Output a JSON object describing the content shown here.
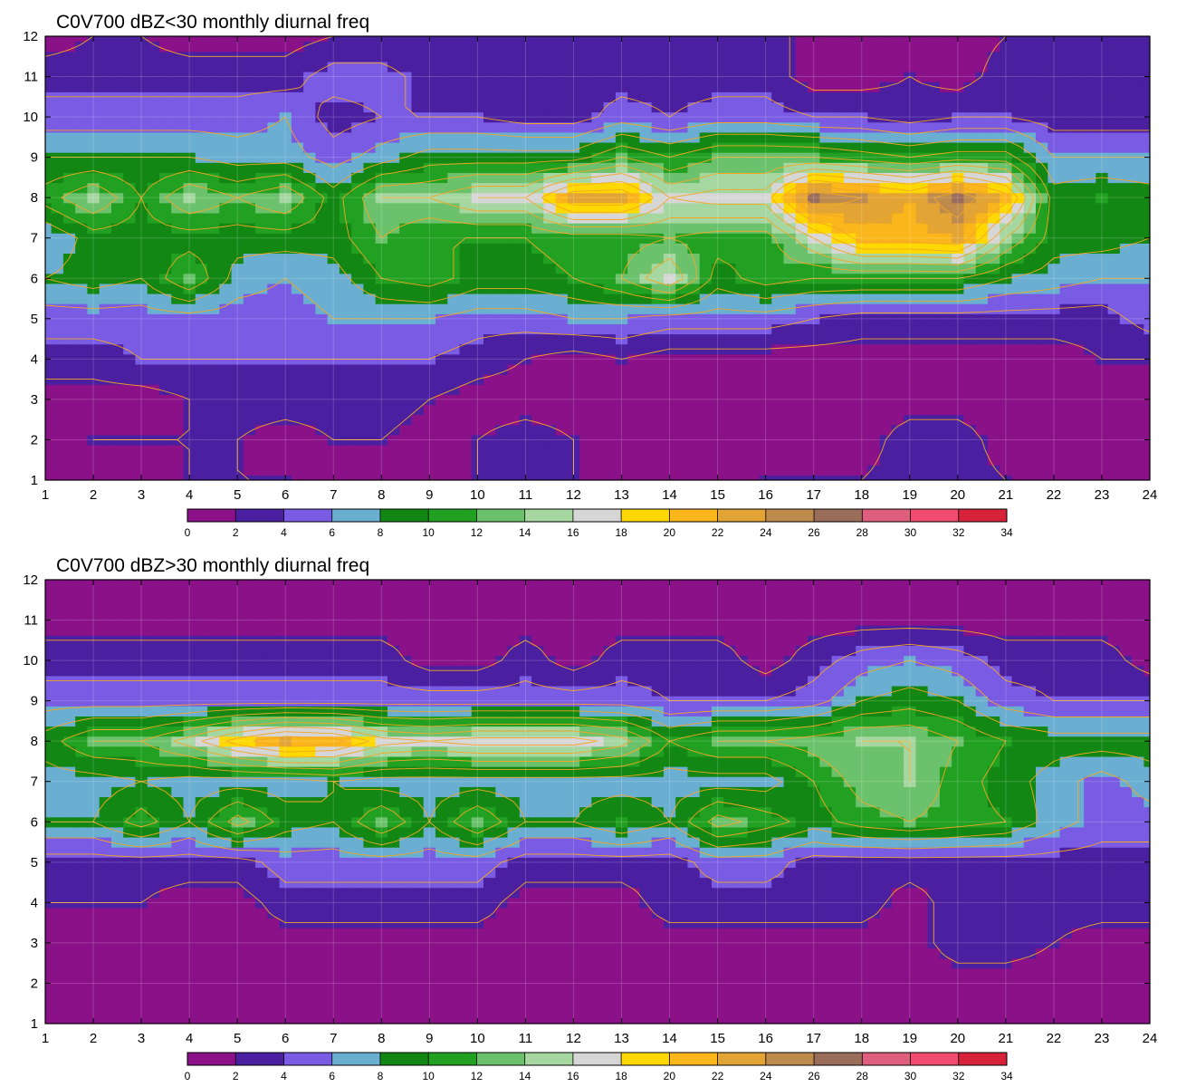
{
  "chart_data": [
    {
      "type": "heatmap",
      "title": "C0V700 dBZ<30 monthly diurnal freq",
      "xlabel": "",
      "ylabel": "",
      "x_ticks": [
        1,
        2,
        3,
        4,
        5,
        6,
        7,
        8,
        9,
        10,
        11,
        12,
        13,
        14,
        15,
        16,
        17,
        18,
        19,
        20,
        21,
        22,
        23,
        24
      ],
      "y_ticks": [
        1,
        2,
        3,
        4,
        5,
        6,
        7,
        8,
        9,
        10,
        11,
        12
      ],
      "xlim": [
        1,
        24
      ],
      "ylim": [
        1,
        12
      ],
      "colorbar_levels": [
        0,
        2,
        4,
        6,
        8,
        10,
        12,
        14,
        16,
        18,
        20,
        22,
        24,
        26,
        28,
        30,
        32,
        34
      ],
      "z": [
        [
          1,
          1,
          1,
          2,
          2,
          2,
          1,
          1,
          1,
          2,
          3,
          2,
          1,
          1,
          1,
          2,
          2,
          2,
          3,
          3,
          2,
          1,
          1,
          0
        ],
        [
          1,
          2,
          2,
          2,
          2,
          1,
          2,
          2,
          1,
          2,
          3,
          2,
          1,
          1,
          1,
          1,
          1,
          1,
          3,
          3,
          1,
          1,
          1,
          1
        ],
        [
          1,
          1,
          1,
          2,
          3,
          3,
          3,
          3,
          2,
          1,
          1,
          1,
          1,
          1,
          1,
          1,
          1,
          1,
          1,
          1,
          1,
          1,
          1,
          1
        ],
        [
          3,
          3,
          4,
          4,
          4,
          4,
          4,
          4,
          4,
          3,
          2,
          1,
          2,
          1,
          1,
          1,
          1,
          1,
          1,
          1,
          1,
          1,
          2,
          2
        ],
        [
          5,
          5,
          5,
          5,
          5,
          5,
          6,
          6,
          6,
          5,
          5,
          6,
          6,
          5,
          5,
          5,
          4,
          3,
          3,
          3,
          3,
          3,
          3,
          5
        ],
        [
          8,
          9,
          8,
          12,
          7,
          6,
          7,
          10,
          11,
          9,
          9,
          10,
          12,
          16,
          9,
          11,
          10,
          10,
          10,
          10,
          8,
          7,
          6,
          6
        ],
        [
          6,
          9,
          9,
          9,
          9,
          9,
          9,
          12,
          10,
          10,
          10,
          11,
          11,
          12,
          11,
          11,
          16,
          21,
          21,
          22,
          14,
          9,
          9,
          8
        ],
        [
          11,
          14,
          10,
          14,
          12,
          14,
          9,
          14,
          14,
          16,
          16,
          22,
          22,
          16,
          17,
          17,
          26,
          24,
          22,
          26,
          21,
          9,
          10,
          9
        ],
        [
          8,
          8,
          8,
          8,
          7,
          7,
          5,
          7,
          9,
          9,
          9,
          9,
          12,
          10,
          12,
          12,
          12,
          11,
          10,
          11,
          11,
          6,
          6,
          6
        ],
        [
          5,
          5,
          5,
          5,
          5,
          6,
          3,
          4,
          4,
          4,
          3,
          3,
          5,
          4,
          5,
          5,
          4,
          4,
          3,
          4,
          4,
          3,
          3,
          3
        ],
        [
          3,
          3,
          3,
          3,
          3,
          3,
          5,
          5,
          3,
          3,
          3,
          3,
          3,
          3,
          3,
          3,
          1,
          1,
          2,
          1,
          3,
          3,
          3,
          3
        ],
        [
          1,
          2,
          2,
          1,
          1,
          1,
          2,
          2,
          2,
          2,
          2,
          2,
          2,
          2,
          3,
          3,
          1,
          1,
          1,
          1,
          2,
          2,
          3,
          2
        ]
      ]
    },
    {
      "type": "heatmap",
      "title": "C0V700 dBZ>30 monthly diurnal freq",
      "xlabel": "",
      "ylabel": "",
      "x_ticks": [
        1,
        2,
        3,
        4,
        5,
        6,
        7,
        8,
        9,
        10,
        11,
        12,
        13,
        14,
        15,
        16,
        17,
        18,
        19,
        20,
        21,
        22,
        23,
        24
      ],
      "y_ticks": [
        1,
        2,
        3,
        4,
        5,
        6,
        7,
        8,
        9,
        10,
        11,
        12
      ],
      "xlim": [
        1,
        24
      ],
      "ylim": [
        1,
        12
      ],
      "colorbar_levels": [
        0,
        2,
        4,
        6,
        8,
        10,
        12,
        14,
        16,
        18,
        20,
        22,
        24,
        26,
        28,
        30,
        32,
        34
      ],
      "z": [
        [
          1,
          1,
          1,
          1,
          1,
          1,
          1,
          1,
          1,
          1,
          1,
          1,
          1,
          1,
          1,
          1,
          1,
          1,
          1,
          1,
          1,
          1,
          1,
          1
        ],
        [
          1,
          1,
          1,
          1,
          1,
          1,
          1,
          1,
          1,
          1,
          1,
          1,
          1,
          1,
          1,
          1,
          1,
          1,
          1,
          1,
          1,
          1,
          1,
          1
        ],
        [
          1,
          1,
          1,
          1,
          1,
          1,
          1,
          1,
          1,
          1,
          1,
          1,
          1,
          1,
          1,
          1,
          1,
          1,
          1,
          3,
          3,
          2,
          1,
          1
        ],
        [
          2,
          2,
          2,
          1,
          1,
          3,
          3,
          3,
          3,
          3,
          1,
          1,
          1,
          3,
          3,
          3,
          3,
          3,
          1,
          3,
          3,
          3,
          3,
          3
        ],
        [
          3,
          3,
          3,
          3,
          3,
          5,
          5,
          5,
          5,
          5,
          3,
          3,
          3,
          3,
          5,
          5,
          3,
          3,
          3,
          3,
          3,
          3,
          3,
          3
        ],
        [
          8,
          8,
          11,
          8,
          13,
          9,
          8,
          12,
          8,
          12,
          8,
          8,
          10,
          8,
          13,
          11,
          9,
          11,
          12,
          11,
          10,
          7,
          5,
          5
        ],
        [
          7,
          7,
          8,
          7,
          7,
          7,
          8,
          7,
          7,
          7,
          7,
          7,
          7,
          7,
          7,
          7,
          10,
          13,
          14,
          11,
          9,
          7,
          5,
          7
        ],
        [
          9,
          12,
          12,
          15,
          19,
          22,
          21,
          17,
          16,
          17,
          17,
          17,
          15,
          10,
          12,
          12,
          13,
          14,
          14,
          12,
          10,
          9,
          9,
          9
        ],
        [
          5,
          5,
          5,
          5,
          5,
          5,
          5,
          5,
          5,
          5,
          5,
          5,
          5,
          4,
          4,
          4,
          5,
          8,
          9,
          8,
          5,
          4,
          4,
          4
        ],
        [
          3,
          3,
          3,
          3,
          3,
          3,
          3,
          3,
          1,
          1,
          3,
          1,
          3,
          3,
          3,
          1,
          3,
          5,
          6,
          5,
          3,
          3,
          3,
          1
        ],
        [
          1,
          1,
          1,
          1,
          1,
          1,
          1,
          1,
          1,
          1,
          1,
          1,
          1,
          1,
          1,
          1,
          1,
          1,
          1,
          1,
          1,
          1,
          1,
          1
        ],
        [
          1,
          1,
          1,
          1,
          1,
          1,
          1,
          1,
          1,
          1,
          1,
          1,
          1,
          1,
          1,
          1,
          1,
          1,
          1,
          1,
          1,
          1,
          1,
          1
        ]
      ]
    }
  ],
  "palette": [
    "#8b1189",
    "#4a1fa0",
    "#7a5be3",
    "#6aaed1",
    "#138713",
    "#22a022",
    "#6cc26c",
    "#a6d7a1",
    "#d6d6d6",
    "#ffd800",
    "#fbb61c",
    "#e3a436",
    "#be8b4c",
    "#9a6c5a",
    "#df5e7d",
    "#f04b70",
    "#d7233a"
  ],
  "contour_line_color": "#f4a623"
}
